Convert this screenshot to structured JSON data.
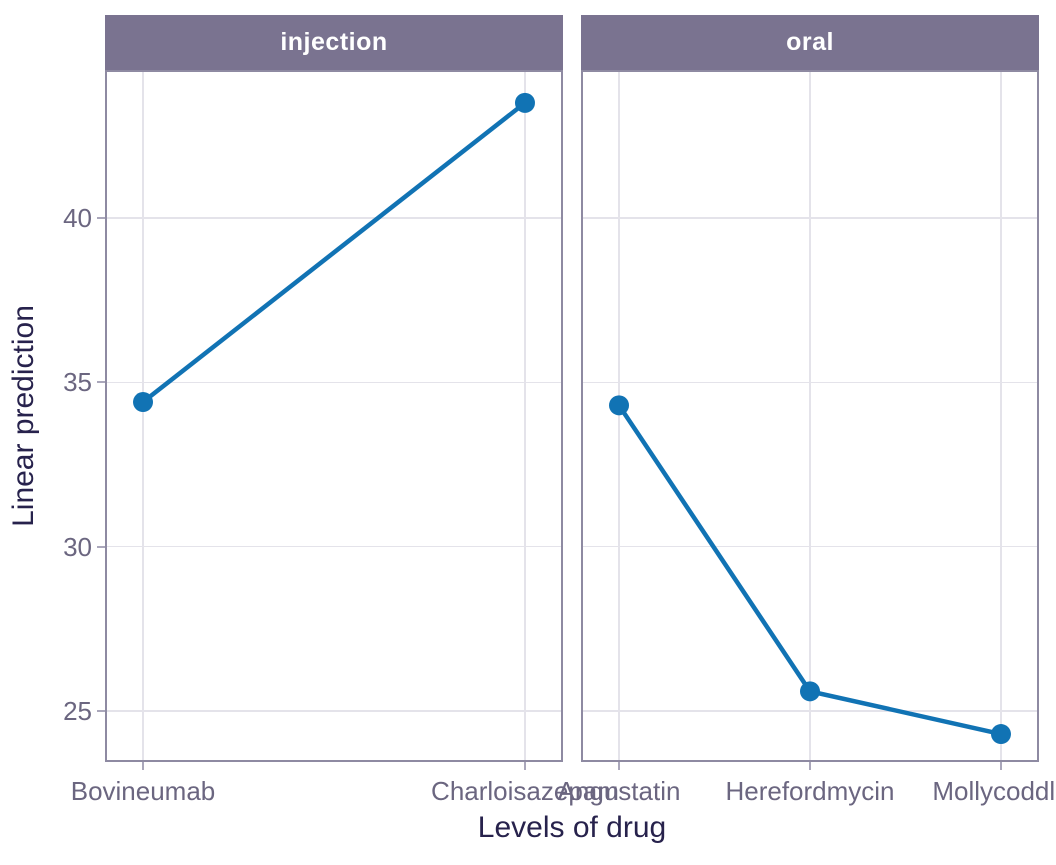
{
  "chart_data": {
    "type": "line",
    "subtype": "faceted-point-line (marginsplot style)",
    "xlabel": "Levels of drug",
    "ylabel": "Linear prediction",
    "yticks": [
      25,
      30,
      35,
      40
    ],
    "ylim": [
      23.45,
      44.5
    ],
    "grid": true,
    "legend": "none",
    "facets": [
      {
        "label": "injection",
        "categories": [
          "Bovineumab",
          "Charloisazepam"
        ],
        "values": [
          34.4,
          43.5
        ]
      },
      {
        "label": "oral",
        "categories": [
          "Angustatin",
          "Herefordmycin",
          "Mollycoddle"
        ],
        "values": [
          34.3,
          25.6,
          24.3
        ]
      }
    ]
  },
  "colors": {
    "series": "#1173b4",
    "strip_bg": "#7a7390",
    "strip_text": "#ffffff",
    "panel_border": "#8e8aa2",
    "gridline": "#e4e3ea",
    "tick_mark": "#aaa7bb",
    "tick_label": "#6b6680",
    "axis_title": "#27224c",
    "background": "#ffffff"
  }
}
